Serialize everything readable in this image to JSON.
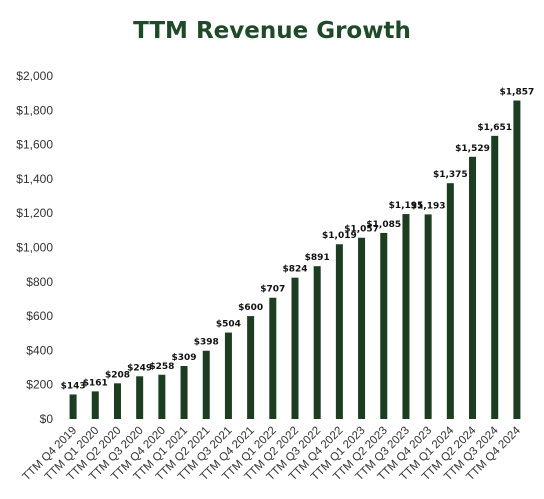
{
  "chart_data": {
    "type": "bar",
    "title": "TTM Revenue Growth",
    "xlabel": "",
    "ylabel": "",
    "ylim": [
      0,
      2000
    ],
    "yticks": [
      "$0",
      "$200",
      "$400",
      "$600",
      "$800",
      "$1,000",
      "$1,200",
      "$1,400",
      "$1,600",
      "$1,800",
      "$2,000"
    ],
    "grid": false,
    "legend": "none",
    "bar_color": "#1c3d20",
    "categories": [
      "TTM Q4 2019",
      "TTM Q1 2020",
      "TTM Q2 2020",
      "TTM Q3 2020",
      "TTM Q4 2020",
      "TTM Q1 2021",
      "TTM Q2 2021",
      "TTM Q3 2021",
      "TTM Q4 2021",
      "TTM Q1 2022",
      "TTM Q2 2022",
      "TTM Q3 2022",
      "TTM Q4 2022",
      "TTM Q1 2023",
      "TTM Q2 2023",
      "TTM Q3 2023",
      "TTM Q4 2023",
      "TTM Q1 2024",
      "TTM Q2 2024",
      "TTM Q3 2024",
      "TTM Q4 2024"
    ],
    "values": [
      143,
      161,
      208,
      249,
      258,
      309,
      398,
      504,
      600,
      707,
      824,
      891,
      1019,
      1057,
      1085,
      1195,
      1193,
      1375,
      1529,
      1651,
      1857
    ],
    "data_labels": [
      "$143",
      "$161",
      "$208",
      "$249",
      "$258",
      "$309",
      "$398",
      "$504",
      "$600",
      "$707",
      "$824",
      "$891",
      "$1,019",
      "$1,057",
      "$1,085",
      "$1,195",
      "$1,193",
      "$1,375",
      "$1,529",
      "$1,651",
      "$1,857"
    ]
  }
}
